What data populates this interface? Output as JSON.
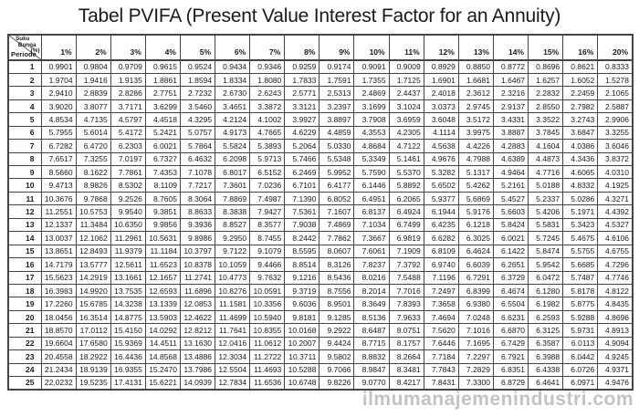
{
  "title": "Tabel PVIFA (Present Value Interest Factor for an Annuity)",
  "corner": {
    "top_line1": "Suku",
    "top_line2": "Bunga",
    "top_line3": "(%)",
    "bottom_label": "Periode"
  },
  "watermark": "ilmumanajemenindustri.com",
  "colors": {
    "text": "#1a1a1a",
    "border": "#454545",
    "watermark": "#c3c3c3",
    "background": "#ffffff"
  },
  "chart_data": {
    "type": "table",
    "title": "Tabel PVIFA (Present Value Interest Factor for an Annuity)",
    "row_header_label": "Periode",
    "column_header_label": "Suku Bunga (%)",
    "rate_columns": [
      "1%",
      "2%",
      "3%",
      "4%",
      "5%",
      "6%",
      "7%",
      "8%",
      "9%",
      "10%",
      "11%",
      "12%",
      "13%",
      "14%",
      "15%",
      "16%",
      "20%"
    ],
    "periods": [
      1,
      2,
      3,
      4,
      5,
      6,
      7,
      8,
      9,
      10,
      11,
      12,
      13,
      14,
      15,
      16,
      17,
      18,
      19,
      20,
      21,
      22,
      23,
      24,
      25
    ],
    "values": [
      [
        "0.9901",
        "0.9804",
        "0.9709",
        "0.9615",
        "0.9524",
        "0.9434",
        "0.9346",
        "0.9259",
        "0.9174",
        "0.9091",
        "0.9009",
        "0.8929",
        "0.8850",
        "0.8772",
        "0.8696",
        "0.8621",
        "0.8333"
      ],
      [
        "1.9704",
        "1.9416",
        "1.9135",
        "1.8861",
        "1.8594",
        "1.8334",
        "1.8080",
        "1.7833",
        "1.7591",
        "1.7355",
        "1.7125",
        "1.6901",
        "1.6681",
        "1.6467",
        "1.6257",
        "1.6052",
        "1.5278"
      ],
      [
        "2.9410",
        "2.8839",
        "2.8286",
        "2.7751",
        "2.7232",
        "2.6730",
        "2.6243",
        "2.5771",
        "2.5313",
        "2.4869",
        "2.4437",
        "2.4018",
        "2.3612",
        "2.3216",
        "2.2832",
        "2.2459",
        "2.1065"
      ],
      [
        "3.9020",
        "3.8077",
        "3.7171",
        "3.6299",
        "3.5460",
        "3.4651",
        "3.3872",
        "3.3121",
        "3.2397",
        "3.1699",
        "3.1024",
        "3.0373",
        "2.9745",
        "2.9137",
        "2.8550",
        "2.7982",
        "2.5887"
      ],
      [
        "4.8534",
        "4.7135",
        "4.5797",
        "4.4518",
        "4.3295",
        "4.2124",
        "4.1002",
        "3.9927",
        "3.8897",
        "3.7908",
        "3.6959",
        "3.6048",
        "3.5172",
        "3.4331",
        "3.3522",
        "3.2743",
        "2.9906"
      ],
      [
        "5.7955",
        "5.6014",
        "5.4172",
        "5.2421",
        "5.0757",
        "4.9173",
        "4.7665",
        "4.6229",
        "4.4859",
        "4.3553",
        "4.2305",
        "4.1114",
        "3.9975",
        "3.8887",
        "3.7845",
        "3.6847",
        "3.3255"
      ],
      [
        "6.7282",
        "6.4720",
        "6.2303",
        "6.0021",
        "5.7864",
        "5.5824",
        "5.3893",
        "5.2064",
        "5.0330",
        "4.8684",
        "4.7122",
        "4.5638",
        "4.4226",
        "4.2883",
        "4.1604",
        "4.0386",
        "3.6046"
      ],
      [
        "7.6517",
        "7.3255",
        "7.0197",
        "6.7327",
        "6.4632",
        "6.2098",
        "5.9713",
        "5.7466",
        "5.5348",
        "5.3349",
        "5.1461",
        "4.9676",
        "4.7988",
        "4.6389",
        "4.4873",
        "4.3436",
        "3.8372"
      ],
      [
        "8.5660",
        "8.1622",
        "7.7861",
        "7.4353",
        "7.1078",
        "6.8017",
        "6.5152",
        "6.2469",
        "5.9952",
        "5.7590",
        "5.5370",
        "5.3282",
        "5.1317",
        "4.9464",
        "4.7716",
        "4.6065",
        "4.0310"
      ],
      [
        "9.4713",
        "8.9826",
        "8.5302",
        "8.1109",
        "7.7217",
        "7.3601",
        "7.0236",
        "6.7101",
        "6.4177",
        "6.1446",
        "5.8892",
        "5.6502",
        "5.4262",
        "5.2161",
        "5.0188",
        "4.8332",
        "4.1925"
      ],
      [
        "10.3676",
        "9.7868",
        "9.2526",
        "8.7605",
        "8.3064",
        "7.8869",
        "7.4987",
        "7.1390",
        "6.8052",
        "6.4951",
        "6.2065",
        "5.9377",
        "5.6869",
        "5.4527",
        "5.2337",
        "5.0286",
        "4.3271"
      ],
      [
        "11.2551",
        "10.5753",
        "9.9540",
        "9.3851",
        "8.8633",
        "8.3838",
        "7.9427",
        "7.5361",
        "7.1607",
        "6.8137",
        "6.4924",
        "6.1944",
        "5.9176",
        "5.6603",
        "5.4206",
        "5.1971",
        "4.4392"
      ],
      [
        "12.1337",
        "11.3484",
        "10.6350",
        "9.9856",
        "9.3936",
        "8.8527",
        "8.3577",
        "7.9038",
        "7.4869",
        "7.1034",
        "6.7499",
        "6.4235",
        "6.1218",
        "5.8424",
        "5.5831",
        "5.3423",
        "4.5327"
      ],
      [
        "13.0037",
        "12.1062",
        "11.2961",
        "10.5631",
        "9.8986",
        "9.2950",
        "8.7455",
        "8.2442",
        "7.7862",
        "7.3667",
        "6.9819",
        "6.6282",
        "6.3025",
        "6.0021",
        "5.7245",
        "5.4675",
        "4.6106"
      ],
      [
        "13.8651",
        "12.8493",
        "11.9379",
        "11.1184",
        "10.3797",
        "9.7122",
        "9.1079",
        "8.5595",
        "8.0607",
        "7.6061",
        "7.1909",
        "6.8109",
        "6.4624",
        "6.1422",
        "5.8474",
        "5.5755",
        "4.6755"
      ],
      [
        "14.7179",
        "13.5777",
        "12.5611",
        "11.6523",
        "10.8378",
        "10.1059",
        "9.4466",
        "8.8514",
        "8.3126",
        "7.8237",
        "7.3792",
        "6.9740",
        "6.6039",
        "6.2651",
        "5.9542",
        "5.6685",
        "4.7296"
      ],
      [
        "15.5623",
        "14.2919",
        "13.1661",
        "12.1657",
        "11.2741",
        "10.4773",
        "9.7632",
        "9.1216",
        "8.5436",
        "8.0216",
        "7.5488",
        "7.1196",
        "6.7291",
        "6.3729",
        "6.0472",
        "5.7487",
        "4.7746"
      ],
      [
        "16.3983",
        "14.9920",
        "13.7535",
        "12.6593",
        "11.6896",
        "10.8276",
        "10.0591",
        "9.3719",
        "8.7556",
        "8.2014",
        "7.7016",
        "7.2497",
        "6.8399",
        "6.4674",
        "6.1280",
        "5.8178",
        "4.8122"
      ],
      [
        "17.2260",
        "15.6785",
        "14.3238",
        "13.1339",
        "12.0853",
        "11.1581",
        "10.3356",
        "9.6036",
        "8.9501",
        "8.3649",
        "7.8393",
        "7.3658",
        "6.9380",
        "6.5504",
        "6.1982",
        "5.8775",
        "4.8435"
      ],
      [
        "18.0456",
        "16.3514",
        "14.8775",
        "13.5903",
        "12.4622",
        "11.4699",
        "10.5940",
        "9.8181",
        "9.1285",
        "8.5136",
        "7.9633",
        "7.4694",
        "7.0248",
        "6.6231",
        "6.2593",
        "5.9288",
        "4.8696"
      ],
      [
        "18.8570",
        "17.0112",
        "15.4150",
        "14.0292",
        "12.8212",
        "11.7641",
        "10.8355",
        "10.0168",
        "9.2922",
        "8.6487",
        "8.0751",
        "7.5620",
        "7.1016",
        "6.6870",
        "6.3125",
        "5.9731",
        "4.8913"
      ],
      [
        "19.6604",
        "17.6580",
        "15.9369",
        "14.4511",
        "13.1630",
        "12.0416",
        "11.0612",
        "10.2007",
        "9.4424",
        "8.7715",
        "8.1757",
        "7.6446",
        "7.1695",
        "6.7429",
        "6.3587",
        "6.0113",
        "4.9094"
      ],
      [
        "20.4558",
        "18.2922",
        "16.4436",
        "14.8568",
        "13.4886",
        "12.3034",
        "11.2722",
        "10.3711",
        "9.5802",
        "8.8832",
        "8.2664",
        "7.7184",
        "7.2297",
        "6.7921",
        "6.3988",
        "6.0442",
        "4.9245"
      ],
      [
        "21.2434",
        "18.9139",
        "16.9355",
        "15.2470",
        "13.7986",
        "12.5504",
        "11.4693",
        "10.5288",
        "9.7066",
        "8.9847",
        "8.3481",
        "7.7843",
        "7.2829",
        "6.8351",
        "6.4338",
        "6.0726",
        "4.9371"
      ],
      [
        "22.0232",
        "19.5235",
        "17.4131",
        "15.6221",
        "14.0939",
        "12.7834",
        "11.6536",
        "10.6748",
        "9.8226",
        "9.0770",
        "8.4217",
        "7.8431",
        "7.3300",
        "6.8729",
        "6.4641",
        "6.0971",
        "4.9476"
      ]
    ]
  }
}
